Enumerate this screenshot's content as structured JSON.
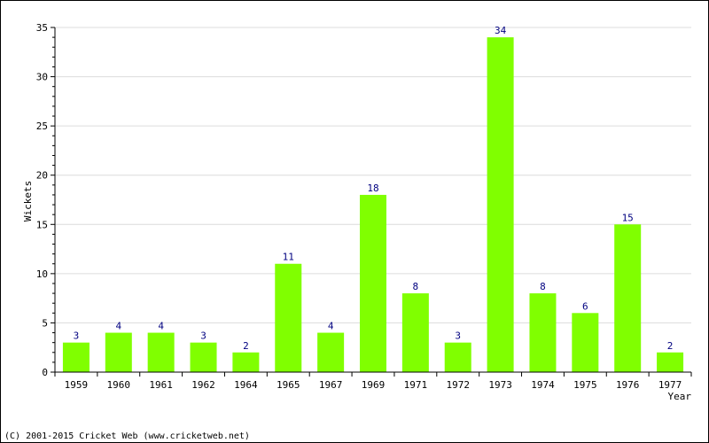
{
  "chart_data": {
    "type": "bar",
    "categories": [
      "1959",
      "1960",
      "1961",
      "1962",
      "1964",
      "1965",
      "1967",
      "1969",
      "1971",
      "1972",
      "1973",
      "1974",
      "1975",
      "1976",
      "1977"
    ],
    "values": [
      3,
      4,
      4,
      3,
      2,
      11,
      4,
      18,
      8,
      3,
      34,
      8,
      6,
      15,
      2
    ],
    "xlabel": "Year",
    "ylabel": "Wickets",
    "ylim": [
      0,
      35
    ],
    "yticks": [
      0,
      5,
      10,
      15,
      20,
      25,
      30,
      35
    ],
    "grid": true,
    "data_labels": true,
    "colors": {
      "bar": "#80ff00",
      "data_label": "#000080",
      "grid": "#dcdcdc",
      "axis": "#000000"
    }
  },
  "footer": {
    "copyright": "(C) 2001-2015 Cricket Web (www.cricketweb.net)"
  }
}
